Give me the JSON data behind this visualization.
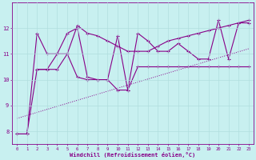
{
  "xlabel": "Windchill (Refroidissement éolien,°C)",
  "bg_color": "#c8f0f0",
  "line_color": "#880088",
  "grid_color": "#b0dede",
  "x_min": -0.5,
  "x_max": 23.5,
  "y_min": 7.5,
  "y_max": 13.0,
  "y_ticks": [
    8,
    9,
    10,
    11,
    12
  ],
  "x_ticks": [
    0,
    1,
    2,
    3,
    4,
    5,
    6,
    7,
    8,
    9,
    10,
    11,
    12,
    13,
    14,
    15,
    16,
    17,
    18,
    19,
    20,
    21,
    22,
    23
  ],
  "line_zigzag_x": [
    0,
    1,
    2,
    3,
    4,
    5,
    6,
    7,
    8,
    9,
    10,
    11,
    12,
    13,
    14,
    15,
    16,
    17,
    18,
    19,
    20,
    21,
    22,
    23
  ],
  "line_zigzag_y": [
    7.9,
    7.9,
    11.8,
    11.0,
    11.0,
    11.8,
    12.0,
    10.1,
    10.0,
    10.0,
    11.7,
    9.6,
    11.8,
    11.5,
    11.1,
    11.1,
    11.4,
    11.1,
    10.8,
    10.8,
    12.3,
    10.8,
    12.2,
    12.2
  ],
  "line_flat_x": [
    0,
    1,
    2,
    3,
    4,
    5,
    6,
    7,
    8,
    9,
    10,
    11,
    12,
    13,
    14,
    15,
    16,
    17,
    18,
    19,
    20,
    21,
    22,
    23
  ],
  "line_flat_y": [
    7.9,
    7.9,
    10.4,
    10.4,
    10.4,
    11.0,
    10.1,
    10.0,
    10.0,
    10.0,
    9.6,
    9.6,
    10.5,
    10.5,
    10.5,
    10.5,
    10.5,
    10.5,
    10.5,
    10.5,
    10.5,
    10.5,
    10.5,
    10.5
  ],
  "line_medium_x": [
    2,
    3,
    4,
    5,
    6,
    7,
    8,
    9,
    10,
    11,
    12,
    13,
    14,
    15,
    16,
    17,
    18,
    19,
    20,
    21,
    22,
    23
  ],
  "line_medium_y": [
    10.4,
    10.4,
    11.0,
    11.0,
    12.1,
    11.8,
    11.7,
    11.5,
    11.3,
    11.1,
    11.1,
    11.1,
    11.3,
    11.5,
    11.6,
    11.7,
    11.8,
    11.9,
    12.0,
    12.1,
    12.2,
    12.3
  ],
  "trend_x": [
    0,
    23
  ],
  "trend_y": [
    8.5,
    11.2
  ]
}
